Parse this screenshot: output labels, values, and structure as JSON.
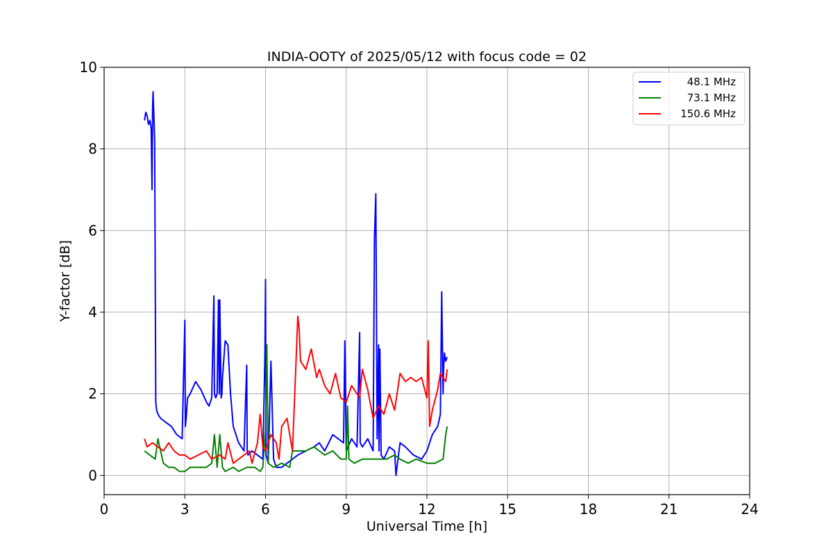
{
  "chart_data": {
    "type": "line",
    "title": "INDIA-OOTY of 2025/05/12 with focus code = 02",
    "xlabel": "Universal Time [h]",
    "ylabel": "Y-factor [dB]",
    "xlim": [
      0,
      24
    ],
    "ylim": [
      -0.47,
      10
    ],
    "xticks": [
      0,
      3,
      6,
      9,
      12,
      15,
      18,
      21,
      24
    ],
    "yticks": [
      0,
      2,
      4,
      6,
      8,
      10
    ],
    "grid": true,
    "legend_position": "top-right",
    "series": [
      {
        "name": "48.1 MHz",
        "color": "#0000ff",
        "x": [
          1.5,
          1.55,
          1.6,
          1.65,
          1.7,
          1.75,
          1.78,
          1.8,
          1.82,
          1.85,
          1.88,
          1.9,
          1.92,
          1.95,
          2.0,
          2.1,
          2.3,
          2.5,
          2.7,
          2.9,
          3.0,
          3.02,
          3.05,
          3.1,
          3.2,
          3.4,
          3.6,
          3.8,
          3.9,
          4.0,
          4.08,
          4.1,
          4.15,
          4.2,
          4.25,
          4.28,
          4.3,
          4.35,
          4.38,
          4.4,
          4.5,
          4.6,
          4.7,
          4.8,
          5.0,
          5.2,
          5.3,
          5.32,
          5.35,
          5.5,
          5.7,
          5.9,
          5.98,
          6.0,
          6.02,
          6.1,
          6.2,
          6.3,
          6.4,
          6.6,
          6.8,
          7.0,
          7.2,
          7.5,
          7.8,
          8.0,
          8.2,
          8.5,
          8.7,
          8.9,
          8.95,
          9.0,
          9.2,
          9.4,
          9.5,
          9.52,
          9.6,
          9.8,
          10.0,
          10.05,
          10.1,
          10.15,
          10.2,
          10.22,
          10.25,
          10.3,
          10.4,
          10.6,
          10.8,
          10.85,
          11.0,
          11.2,
          11.5,
          11.8,
          12.0,
          12.2,
          12.4,
          12.5,
          12.55,
          12.6,
          12.62,
          12.65,
          12.7,
          12.75
        ],
        "y": [
          8.7,
          8.9,
          8.8,
          8.6,
          8.7,
          8.5,
          7.0,
          9.0,
          9.4,
          8.8,
          8.2,
          5.0,
          1.8,
          1.6,
          1.5,
          1.4,
          1.3,
          1.2,
          1.0,
          0.9,
          3.8,
          1.2,
          1.4,
          1.9,
          2.0,
          2.3,
          2.1,
          1.8,
          1.7,
          1.9,
          4.4,
          2.0,
          1.9,
          2.0,
          4.3,
          2.0,
          4.3,
          1.9,
          2.0,
          2.4,
          3.3,
          3.2,
          2.0,
          1.2,
          0.8,
          0.6,
          2.7,
          0.6,
          0.5,
          0.6,
          0.5,
          0.4,
          3.0,
          4.8,
          0.5,
          0.3,
          2.8,
          0.4,
          0.2,
          0.2,
          0.3,
          0.4,
          0.5,
          0.6,
          0.7,
          0.8,
          0.6,
          1.0,
          0.9,
          0.8,
          3.3,
          0.6,
          0.9,
          0.7,
          3.5,
          0.8,
          0.7,
          0.9,
          0.6,
          5.8,
          6.9,
          0.9,
          3.2,
          0.6,
          3.1,
          0.5,
          0.4,
          0.7,
          0.6,
          0.0,
          0.8,
          0.7,
          0.5,
          0.4,
          0.6,
          1.0,
          1.2,
          1.5,
          4.5,
          2.0,
          2.6,
          3.0,
          2.8,
          2.9
        ]
      },
      {
        "name": "73.1 MHz",
        "color": "#008000",
        "x": [
          1.5,
          1.7,
          1.9,
          2.0,
          2.2,
          2.4,
          2.6,
          2.8,
          3.0,
          3.2,
          3.5,
          3.8,
          4.0,
          4.1,
          4.2,
          4.3,
          4.4,
          4.5,
          4.8,
          5.0,
          5.3,
          5.6,
          5.8,
          5.9,
          6.0,
          6.05,
          6.1,
          6.3,
          6.6,
          6.9,
          7.0,
          7.2,
          7.5,
          7.8,
          8.0,
          8.2,
          8.5,
          8.8,
          9.0,
          9.05,
          9.1,
          9.3,
          9.6,
          10.0,
          10.2,
          10.5,
          10.8,
          11.0,
          11.3,
          11.6,
          12.0,
          12.3,
          12.6,
          12.7,
          12.75
        ],
        "y": [
          0.6,
          0.5,
          0.4,
          0.9,
          0.3,
          0.2,
          0.2,
          0.1,
          0.1,
          0.2,
          0.2,
          0.2,
          0.3,
          1.0,
          0.2,
          1.0,
          0.2,
          0.1,
          0.2,
          0.1,
          0.2,
          0.2,
          0.1,
          0.2,
          1.1,
          3.2,
          0.3,
          0.2,
          0.3,
          0.2,
          0.6,
          0.6,
          0.6,
          0.7,
          0.6,
          0.5,
          0.6,
          0.4,
          0.4,
          1.7,
          0.4,
          0.3,
          0.4,
          0.4,
          0.4,
          0.4,
          0.5,
          0.4,
          0.3,
          0.4,
          0.3,
          0.3,
          0.4,
          1.0,
          1.2
        ]
      },
      {
        "name": "150.6 MHz",
        "color": "#ff0000",
        "x": [
          1.5,
          1.6,
          1.8,
          2.0,
          2.2,
          2.4,
          2.6,
          2.8,
          3.0,
          3.2,
          3.5,
          3.8,
          4.0,
          4.3,
          4.5,
          4.6,
          4.8,
          5.0,
          5.2,
          5.4,
          5.5,
          5.7,
          5.8,
          5.9,
          6.0,
          6.2,
          6.4,
          6.5,
          6.6,
          6.8,
          7.0,
          7.1,
          7.2,
          7.25,
          7.3,
          7.5,
          7.7,
          7.9,
          8.0,
          8.2,
          8.4,
          8.6,
          8.8,
          9.0,
          9.2,
          9.4,
          9.5,
          9.6,
          9.8,
          10.0,
          10.2,
          10.4,
          10.6,
          10.8,
          11.0,
          11.2,
          11.4,
          11.6,
          11.8,
          12.0,
          12.05,
          12.1,
          12.2,
          12.4,
          12.5,
          12.6,
          12.7,
          12.75
        ],
        "y": [
          0.9,
          0.7,
          0.8,
          0.7,
          0.6,
          0.8,
          0.6,
          0.5,
          0.5,
          0.4,
          0.5,
          0.6,
          0.4,
          0.5,
          0.4,
          0.8,
          0.3,
          0.4,
          0.5,
          0.6,
          0.3,
          0.8,
          1.5,
          0.7,
          0.6,
          1.0,
          0.8,
          0.4,
          1.2,
          1.4,
          0.6,
          2.2,
          3.9,
          3.6,
          2.8,
          2.6,
          3.1,
          2.4,
          2.6,
          2.2,
          2.0,
          2.5,
          1.9,
          1.8,
          2.2,
          2.0,
          1.9,
          2.6,
          2.1,
          1.4,
          1.7,
          1.5,
          2.0,
          1.6,
          2.5,
          2.3,
          2.4,
          2.3,
          2.4,
          1.9,
          3.3,
          1.2,
          1.6,
          2.1,
          2.5,
          2.4,
          2.3,
          2.6
        ]
      }
    ]
  }
}
